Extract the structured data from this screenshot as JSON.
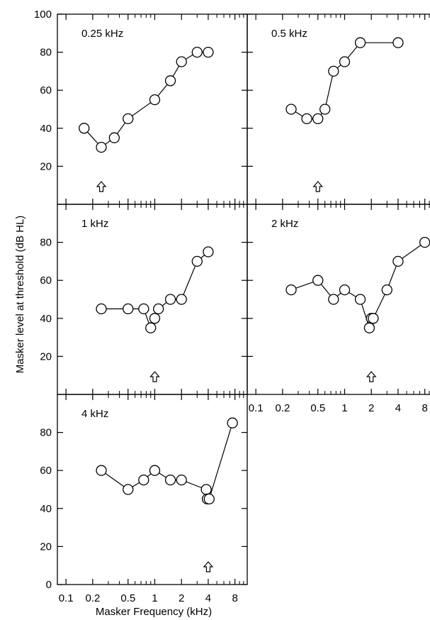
{
  "figure": {
    "ylabel": "Masker level at threshold (dB HL)",
    "xlabel": "Masker Frequency (kHz)"
  },
  "chart_data": [
    {
      "type": "line",
      "panel_label": "0.25 kHz",
      "probe_frequency_khz": 0.25,
      "x": [
        0.16,
        0.25,
        0.35,
        0.5,
        1.0,
        1.5,
        2.0,
        3.0,
        4.0
      ],
      "y": [
        40,
        30,
        35,
        45,
        55,
        65,
        75,
        80,
        80
      ],
      "xscale": "log",
      "xlim": [
        0.08,
        11
      ],
      "ylim": [
        0,
        100
      ]
    },
    {
      "type": "line",
      "panel_label": "0.5 kHz",
      "probe_frequency_khz": 0.5,
      "x": [
        0.25,
        0.375,
        0.5,
        0.6,
        0.75,
        1.0,
        1.5,
        4.0
      ],
      "y": [
        50,
        45,
        45,
        50,
        70,
        75,
        85,
        85
      ],
      "xscale": "log",
      "xlim": [
        0.08,
        11
      ],
      "ylim": [
        0,
        100
      ]
    },
    {
      "type": "line",
      "panel_label": "1 kHz",
      "probe_frequency_khz": 1.0,
      "x": [
        0.25,
        0.5,
        0.75,
        0.9,
        1.0,
        1.1,
        1.5,
        2.0,
        3.0,
        4.0
      ],
      "y": [
        45,
        45,
        45,
        35,
        40,
        45,
        50,
        50,
        70,
        75
      ],
      "xscale": "log",
      "xlim": [
        0.08,
        11
      ],
      "ylim": [
        0,
        100
      ]
    },
    {
      "type": "line",
      "panel_label": "2 kHz",
      "probe_frequency_khz": 2.0,
      "x": [
        0.25,
        0.5,
        0.75,
        1.0,
        1.5,
        1.9,
        2.0,
        2.1,
        3.0,
        4.0,
        8.0
      ],
      "y": [
        55,
        60,
        50,
        55,
        50,
        35,
        40,
        40,
        55,
        70,
        80
      ],
      "xscale": "log",
      "xlim": [
        0.08,
        11
      ],
      "ylim": [
        0,
        100
      ]
    },
    {
      "type": "line",
      "panel_label": "4 kHz",
      "probe_frequency_khz": 4.0,
      "x": [
        0.25,
        0.5,
        0.75,
        1.0,
        1.5,
        2.0,
        3.8,
        3.9,
        4.1,
        7.5
      ],
      "y": [
        60,
        50,
        55,
        60,
        55,
        55,
        50,
        45,
        45,
        85
      ],
      "xscale": "log",
      "xlim": [
        0.08,
        11
      ],
      "ylim": [
        0,
        100
      ]
    }
  ],
  "axes": {
    "y_ticks_top": [
      "20",
      "40",
      "60",
      "80",
      "100"
    ],
    "y_ticks_mid": [
      "20",
      "40",
      "60",
      "80"
    ],
    "y_ticks_bottom": [
      "0",
      "20",
      "40",
      "60",
      "80"
    ],
    "x_ticks": [
      {
        "value": 0.1,
        "label": "0.1"
      },
      {
        "value": 0.2,
        "label": "0.2"
      },
      {
        "value": 0.5,
        "label": "0.5"
      },
      {
        "value": 1,
        "label": "1"
      },
      {
        "value": 2,
        "label": "2"
      },
      {
        "value": 4,
        "label": "4"
      },
      {
        "value": 8,
        "label": "8"
      }
    ],
    "x_minor_ticks": [
      0.3,
      0.4,
      0.6,
      0.7,
      0.8,
      0.9,
      3,
      5,
      6,
      7,
      9,
      10
    ]
  }
}
